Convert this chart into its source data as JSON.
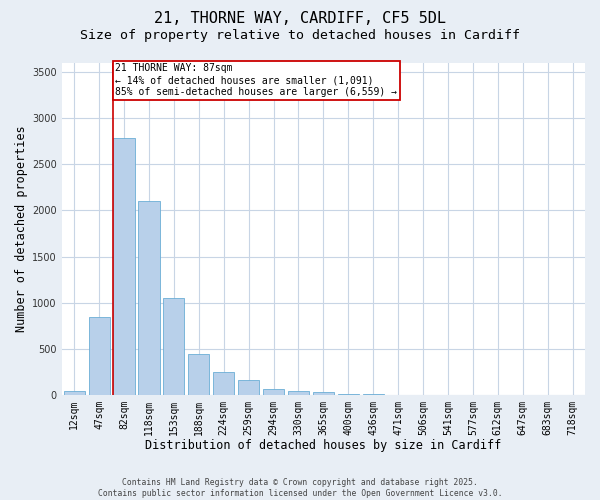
{
  "title_line1": "21, THORNE WAY, CARDIFF, CF5 5DL",
  "title_line2": "Size of property relative to detached houses in Cardiff",
  "xlabel": "Distribution of detached houses by size in Cardiff",
  "ylabel": "Number of detached properties",
  "categories": [
    "12sqm",
    "47sqm",
    "82sqm",
    "118sqm",
    "153sqm",
    "188sqm",
    "224sqm",
    "259sqm",
    "294sqm",
    "330sqm",
    "365sqm",
    "400sqm",
    "436sqm",
    "471sqm",
    "506sqm",
    "541sqm",
    "577sqm",
    "612sqm",
    "647sqm",
    "683sqm",
    "718sqm"
  ],
  "values": [
    50,
    850,
    2780,
    2100,
    1050,
    450,
    250,
    160,
    65,
    45,
    30,
    15,
    8,
    2,
    1,
    0,
    0,
    0,
    0,
    0,
    0
  ],
  "bar_color": "#b8d0ea",
  "bar_edgecolor": "#6baed6",
  "grid_color": "#c8d5e5",
  "background_color": "#e8eef5",
  "plot_bg_color": "#ffffff",
  "vline_color": "#cc0000",
  "vline_bar_index": 2,
  "annotation_text": "21 THORNE WAY: 87sqm\n← 14% of detached houses are smaller (1,091)\n85% of semi-detached houses are larger (6,559) →",
  "annotation_box_edgecolor": "#cc0000",
  "ylim": [
    0,
    3600
  ],
  "yticks": [
    0,
    500,
    1000,
    1500,
    2000,
    2500,
    3000,
    3500
  ],
  "footnote": "Contains HM Land Registry data © Crown copyright and database right 2025.\nContains public sector information licensed under the Open Government Licence v3.0.",
  "title_fontsize": 11,
  "subtitle_fontsize": 9.5,
  "tick_fontsize": 7,
  "label_fontsize": 8.5,
  "ann_fontsize": 7,
  "footnote_fontsize": 5.8,
  "figsize": [
    6.0,
    5.0
  ],
  "dpi": 100
}
